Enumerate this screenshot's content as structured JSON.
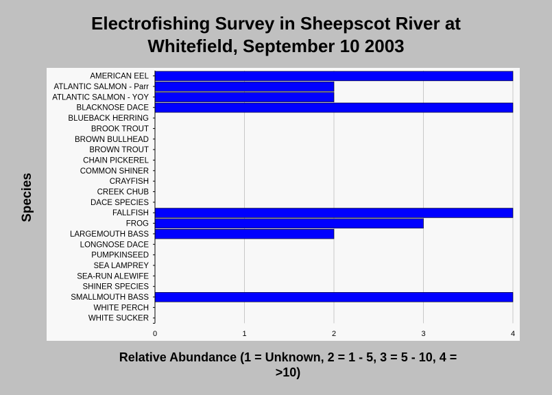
{
  "chart_data": {
    "type": "bar",
    "orientation": "horizontal",
    "title": "Electrofishing Survey in Sheepscot River at Whitefield, September 10 2003",
    "title_lines": [
      "Electrofishing Survey in Sheepscot River at",
      "Whitefield, September 10 2003"
    ],
    "ylabel": "Species",
    "xlabel": "Relative Abundance (1 = Unknown, 2 = 1 - 5, 3 = 5 - 10, 4 = >10)",
    "xlabel_lines": [
      "Relative Abundance (1 = Unknown, 2 = 1 - 5, 3 = 5 - 10, 4 =",
      ">10)"
    ],
    "xlim": [
      0,
      4
    ],
    "xticks": [
      "0",
      "1",
      "2",
      "3",
      "4"
    ],
    "grid": true,
    "bar_color": "#0000ff",
    "categories": [
      "AMERICAN EEL",
      "ATLANTIC SALMON - Parr",
      "ATLANTIC SALMON - YOY",
      "BLACKNOSE DACE",
      "BLUEBACK HERRING",
      "BROOK TROUT",
      "BROWN BULLHEAD",
      "BROWN TROUT",
      "CHAIN PICKEREL",
      "COMMON SHINER",
      "CRAYFISH",
      "CREEK CHUB",
      "DACE SPECIES",
      "FALLFISH",
      "FROG",
      "LARGEMOUTH BASS",
      "LONGNOSE DACE",
      "PUMPKINSEED",
      "SEA LAMPREY",
      "SEA-RUN ALEWIFE",
      "SHINER SPECIES",
      "SMALLMOUTH BASS",
      "WHITE PERCH",
      "WHITE SUCKER"
    ],
    "values": [
      4,
      2,
      2,
      4,
      0,
      0,
      0,
      0,
      0,
      0,
      0,
      0,
      0,
      4,
      3,
      2,
      0,
      0,
      0,
      0,
      0,
      4,
      0,
      0
    ]
  }
}
